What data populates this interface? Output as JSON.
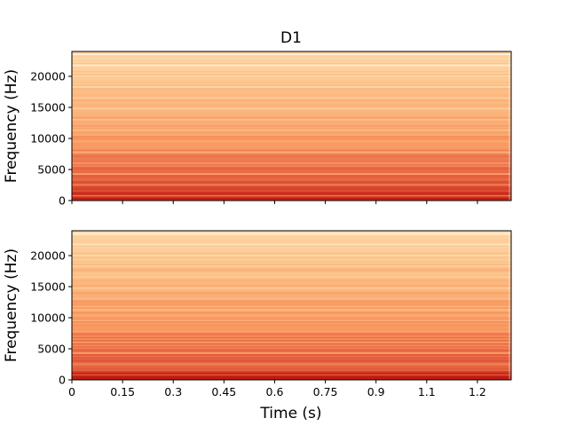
{
  "chart_data": {
    "type": "heatmap",
    "title": "D1",
    "xlabel": "Time (s)",
    "ylabel": "Frequency (Hz)",
    "xlim": [
      0,
      1.3
    ],
    "ylim": [
      0,
      24000
    ],
    "x_ticks": [
      0,
      0.15,
      0.3,
      0.45,
      0.6,
      0.75,
      0.9,
      1.05,
      1.2
    ],
    "x_tick_labels": [
      "0",
      "0.15",
      "0.3",
      "0.45",
      "0.6",
      "0.75",
      "0.9",
      "1.1",
      "1.2"
    ],
    "y_ticks": [
      0,
      5000,
      10000,
      15000,
      20000
    ],
    "y_tick_labels": [
      "0",
      "5000",
      "10000",
      "15000",
      "20000"
    ],
    "colormap": "OrRd",
    "colors": {
      "low": "#fff1dc",
      "high": "#c4190f"
    },
    "panels": [
      {
        "name": "top",
        "show_x_tick_labels": false
      },
      {
        "name": "bottom",
        "show_x_tick_labels": true
      }
    ]
  }
}
